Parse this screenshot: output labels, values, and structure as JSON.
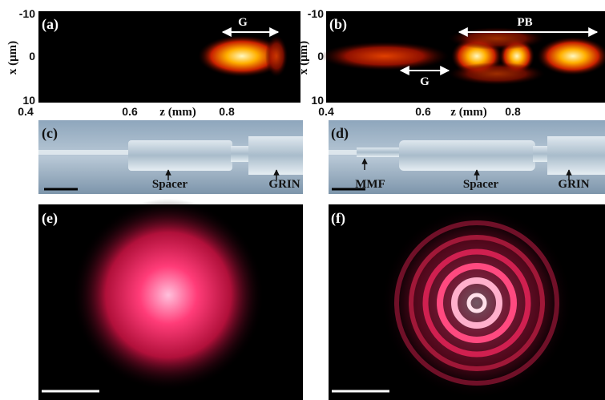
{
  "panels": [
    {
      "label": "(a)",
      "y_axis_label": "x (μm)",
      "yticks": [
        -10,
        0,
        10
      ],
      "x_axis_label": "z (mm)",
      "xticks": [
        0.4,
        0.6,
        0.8
      ],
      "annotations": [
        "G"
      ]
    },
    {
      "label": "(b)",
      "y_axis_label": "x (μm)",
      "yticks": [
        -10,
        0,
        10
      ],
      "x_axis_label": "z (mm)",
      "xticks": [
        0.4,
        0.6,
        0.8
      ],
      "annotations": [
        "PB",
        "G"
      ]
    },
    {
      "label": "(c)",
      "annotations": [
        "Spacer",
        "GRIN"
      ]
    },
    {
      "label": "(d)",
      "annotations": [
        "MMF",
        "Spacer",
        "GRIN"
      ]
    },
    {
      "label": "(e)"
    },
    {
      "label": "(f)"
    }
  ]
}
